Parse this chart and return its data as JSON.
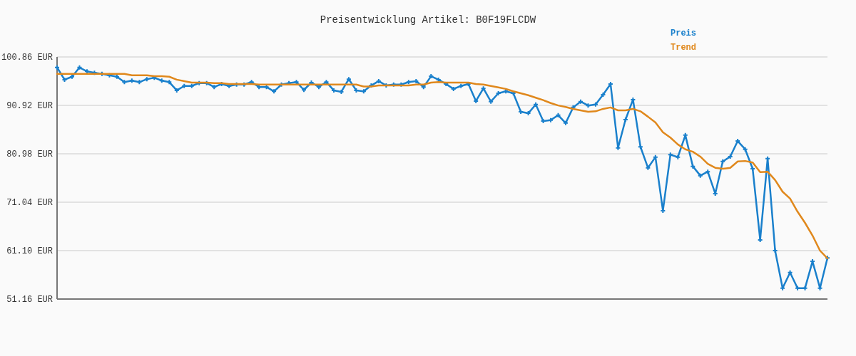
{
  "chart_data": {
    "type": "line",
    "title": "Preisentwicklung Artikel: B0F19FLCDW",
    "categories": [
      null,
      null,
      null,
      null,
      null,
      null,
      null,
      null,
      null,
      null,
      null,
      null,
      null,
      null,
      null,
      null,
      null,
      null,
      null,
      null,
      null,
      null,
      null,
      null,
      null,
      null,
      null,
      null,
      null,
      null,
      null,
      null,
      null,
      null,
      null,
      null,
      null,
      null,
      null,
      null,
      null,
      null,
      null,
      null,
      null,
      null,
      null,
      null,
      null,
      null,
      null,
      null,
      null,
      null,
      null,
      null,
      null,
      null,
      null,
      null,
      null,
      null,
      null,
      null,
      null,
      null,
      null,
      null,
      null,
      null,
      null,
      null,
      null,
      null,
      null,
      null,
      null,
      null,
      null,
      null,
      null,
      null,
      null,
      null,
      null,
      null,
      null,
      null,
      null,
      null,
      null,
      null,
      null,
      null,
      null,
      null,
      null,
      null,
      null,
      null,
      null,
      null,
      null,
      null
    ],
    "series": [
      {
        "name": "Preis",
        "color": "#1a80cc",
        "marker": "cross",
        "values": [
          98.7,
          96.2,
          96.8,
          98.7,
          97.9,
          97.6,
          97.4,
          97.1,
          96.8,
          95.7,
          96.0,
          95.7,
          96.3,
          96.6,
          96.0,
          95.7,
          94.0,
          94.9,
          94.9,
          95.5,
          95.5,
          94.7,
          95.3,
          94.9,
          95.2,
          95.2,
          95.7,
          94.7,
          94.7,
          93.8,
          95.2,
          95.5,
          95.7,
          94.1,
          95.6,
          94.7,
          95.7,
          94.0,
          93.7,
          96.3,
          94.0,
          93.8,
          95.0,
          95.9,
          95.0,
          95.2,
          95.2,
          95.7,
          95.9,
          94.7,
          96.9,
          96.2,
          95.3,
          94.3,
          94.9,
          95.3,
          91.8,
          94.4,
          91.7,
          93.4,
          93.8,
          93.4,
          89.6,
          89.3,
          91.1,
          87.7,
          87.9,
          88.9,
          87.3,
          90.5,
          91.7,
          90.9,
          91.1,
          93.1,
          95.3,
          82.2,
          88.0,
          92.1,
          82.4,
          78.1,
          80.3,
          69.3,
          80.8,
          80.3,
          84.8,
          78.4,
          76.5,
          77.3,
          72.8,
          79.4,
          80.4,
          83.6,
          81.9,
          77.9,
          63.3,
          80.0,
          61.1,
          53.4,
          56.6,
          53.4,
          53.4,
          58.9,
          53.4,
          59.6
        ]
      },
      {
        "name": "Trend",
        "color": "#e0881c",
        "marker": "none",
        "values": [
          97.4,
          97.4,
          97.4,
          97.4,
          97.4,
          97.4,
          97.4,
          97.4,
          97.4,
          97.4,
          97.1,
          97.1,
          97.1,
          96.9,
          96.9,
          96.8,
          96.2,
          95.9,
          95.6,
          95.6,
          95.6,
          95.5,
          95.5,
          95.3,
          95.3,
          95.3,
          95.3,
          95.2,
          95.2,
          95.2,
          95.2,
          95.2,
          95.2,
          95.2,
          95.2,
          95.2,
          95.2,
          95.2,
          95.2,
          95.2,
          95.2,
          94.8,
          94.8,
          95.0,
          95.0,
          95.0,
          95.0,
          95.0,
          95.2,
          95.2,
          95.6,
          95.7,
          95.6,
          95.6,
          95.6,
          95.6,
          95.3,
          95.2,
          94.9,
          94.6,
          94.3,
          93.8,
          93.4,
          93.0,
          92.5,
          92.0,
          91.4,
          90.9,
          90.6,
          90.2,
          89.9,
          89.6,
          89.7,
          90.2,
          90.5,
          89.9,
          89.9,
          90.2,
          89.7,
          88.6,
          87.4,
          85.4,
          84.3,
          82.9,
          81.9,
          81.4,
          80.4,
          78.9,
          78.1,
          77.9,
          78.1,
          79.4,
          79.5,
          79.2,
          77.2,
          77.3,
          75.6,
          73.2,
          71.8,
          69.1,
          66.8,
          64.2,
          61.1,
          59.5
        ]
      }
    ],
    "ylim": [
      51.16,
      100.86
    ],
    "yticks": [
      {
        "value": 51.16,
        "label": "51.16 EUR"
      },
      {
        "value": 61.1,
        "label": "61.10 EUR"
      },
      {
        "value": 71.04,
        "label": "71.04 EUR"
      },
      {
        "value": 80.98,
        "label": "80.98 EUR"
      },
      {
        "value": 90.92,
        "label": "90.92 EUR"
      },
      {
        "value": 100.86,
        "label": "100.86 EUR"
      }
    ],
    "grid": "y",
    "legend": "top right",
    "line_style": "solid"
  }
}
